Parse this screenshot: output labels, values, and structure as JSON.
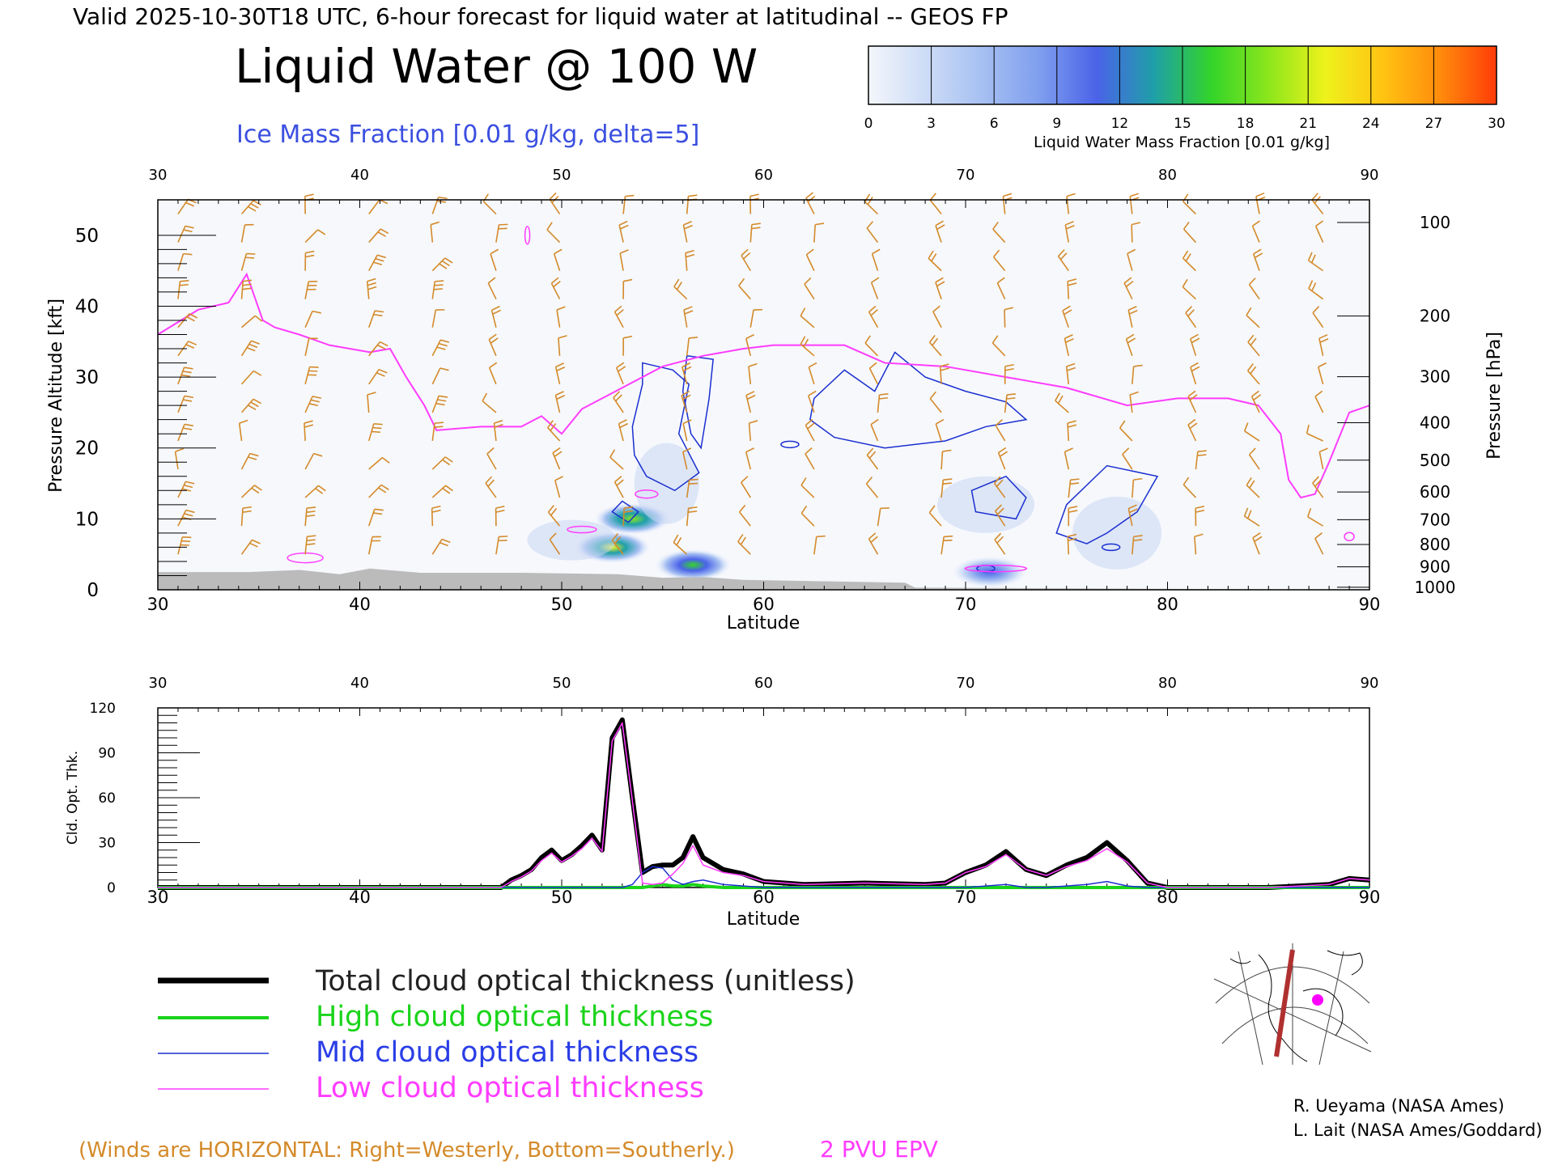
{
  "header": {
    "valid_line": "Valid 2025-10-30T18 UTC, 6-hour forecast for liquid water at latitudinal -- GEOS FP",
    "title": "Liquid Water @ 100 W",
    "subtitle": "Ice Mass Fraction [0.01 g/kg, delta=5]"
  },
  "colorbar": {
    "ticks": [
      "0",
      "3",
      "6",
      "9",
      "12",
      "15",
      "18",
      "21",
      "24",
      "27",
      "30"
    ],
    "label": "Liquid Water Mass Fraction [0.01 g/kg]",
    "colors": [
      "#f3f6fb",
      "#cddcf6",
      "#a6c0f2",
      "#7f9eee",
      "#4a63e8",
      "#1f9fa8",
      "#33d42a",
      "#8be61c",
      "#eef21c",
      "#ffc412",
      "#ff8c0c",
      "#ff3c08"
    ]
  },
  "colors": {
    "wind": "#d48a2a",
    "epv": "#ff3cff",
    "ice": "#1a2fd0",
    "terrain": "#bbbbbb",
    "total": "#000000",
    "high": "#1ad41a",
    "mid": "#1a2fd0",
    "low": "#ff3cff"
  },
  "chart_data": [
    {
      "type": "heatmap",
      "description_kind": "latitude-height cross section",
      "xlabel": "Latitude",
      "ylabel_left": "Pressure Altitude [kft]",
      "ylabel_right": "Pressure [hPa]",
      "xlim": [
        30,
        90
      ],
      "ylim_kft": [
        0,
        55
      ],
      "xticks": [
        "30",
        "40",
        "50",
        "60",
        "70",
        "80",
        "90"
      ],
      "yticks_left": [
        "0",
        "10",
        "20",
        "30",
        "40",
        "50"
      ],
      "yticks_right": [
        "100",
        "200",
        "300",
        "400",
        "500",
        "600",
        "700",
        "800",
        "900",
        "1000"
      ],
      "pressure_levels_hpa": [
        100,
        200,
        300,
        400,
        500,
        600,
        700,
        800,
        900,
        1000
      ],
      "epv_2pvu_kft": {
        "lat": [
          30,
          32,
          33.5,
          34.4,
          35.2,
          35.8,
          37,
          38.5,
          40.5,
          41.5,
          42.3,
          43.2,
          43.8,
          46,
          48,
          49,
          50,
          51,
          53,
          55,
          57,
          59,
          60.5,
          62,
          64,
          66,
          69,
          72,
          75,
          78,
          80.5,
          83,
          84.5,
          85.6,
          86,
          86.6,
          87.3,
          88,
          89,
          90
        ],
        "kft": [
          36,
          39.5,
          40.5,
          44.5,
          38,
          37,
          36,
          34.5,
          33.5,
          34,
          30,
          26,
          22.5,
          23,
          23,
          24.5,
          22,
          25.5,
          28.5,
          31.5,
          33,
          34,
          34.5,
          34.5,
          34.5,
          32,
          31.5,
          30,
          28.5,
          26,
          27,
          27,
          26,
          22,
          15.5,
          13,
          13.5,
          18,
          25,
          26
        ]
      },
      "liquid_water_blobs": [
        {
          "lat": 52.5,
          "kft": 6,
          "peak": 20
        },
        {
          "lat": 53.5,
          "kft": 10,
          "peak": 18
        },
        {
          "lat": 56.5,
          "kft": 3.5,
          "peak": 16
        },
        {
          "lat": 71.2,
          "kft": 2.5,
          "peak": 11
        }
      ]
    },
    {
      "type": "line",
      "xlabel": "Latitude",
      "ylabel": "Cld. Opt. Thk.",
      "xlim": [
        30,
        90
      ],
      "ylim": [
        0,
        120
      ],
      "xticks": [
        "30",
        "40",
        "50",
        "60",
        "70",
        "80",
        "90"
      ],
      "yticks": [
        "0",
        "30",
        "60",
        "90",
        "120"
      ],
      "x": [
        30,
        47,
        47.5,
        48,
        48.5,
        49,
        49.5,
        50,
        50.5,
        51,
        51.5,
        52,
        52.5,
        53,
        53.5,
        54,
        54.5,
        55,
        55.5,
        56,
        56.5,
        57,
        58,
        59,
        60,
        62,
        65,
        68,
        69,
        70,
        71,
        72,
        73,
        74,
        75,
        76,
        77,
        78,
        79,
        80,
        85,
        88,
        89,
        90
      ],
      "series": [
        {
          "name": "Total cloud optical thickness (unitless)",
          "values": [
            0,
            0,
            5,
            8,
            12,
            20,
            25,
            18,
            22,
            28,
            35,
            25,
            100,
            112,
            60,
            10,
            14,
            15,
            15,
            20,
            34,
            20,
            12,
            9,
            4,
            2,
            3,
            2,
            3,
            10,
            15,
            24,
            12,
            8,
            15,
            20,
            30,
            18,
            3,
            0,
            0,
            2,
            6,
            5
          ]
        },
        {
          "name": "High cloud optical thickness",
          "values": [
            0,
            0,
            0,
            0,
            0,
            0,
            0,
            0,
            0,
            0,
            0,
            0,
            0,
            0,
            0,
            0,
            1,
            2,
            1,
            1,
            2,
            1,
            0,
            0,
            0,
            0,
            0,
            0,
            0,
            0,
            0,
            0,
            0,
            0,
            0,
            0,
            0,
            0,
            0,
            0,
            0,
            0,
            0,
            0
          ]
        },
        {
          "name": "Mid cloud optical thickness",
          "values": [
            0,
            0,
            0,
            0,
            0,
            0,
            0,
            0,
            0,
            0,
            0,
            0,
            0,
            0,
            2,
            10,
            14,
            13,
            5,
            2,
            4,
            5,
            2,
            1,
            0,
            0,
            0,
            0,
            0,
            0,
            1,
            2,
            0,
            0,
            1,
            2,
            4,
            1,
            0,
            0,
            0,
            0,
            0,
            0
          ]
        },
        {
          "name": "Low cloud optical thickness",
          "values": [
            0,
            0,
            4,
            7,
            11,
            18,
            23,
            17,
            21,
            26,
            33,
            24,
            98,
            110,
            58,
            3,
            2,
            3,
            9,
            16,
            28,
            15,
            10,
            8,
            4,
            2,
            3,
            2,
            3,
            10,
            14,
            22,
            12,
            8,
            14,
            18,
            26,
            17,
            3,
            0,
            0,
            2,
            6,
            5
          ]
        }
      ]
    }
  ],
  "legend": {
    "total": "Total cloud optical thickness (unitless)",
    "high": "High cloud optical thickness",
    "mid": "Mid cloud optical thickness",
    "low": "Low cloud optical thickness"
  },
  "footer": {
    "winds_note": "(Winds are HORIZONTAL: Right=Westerly, Bottom=Southerly.)",
    "epv_label": "2 PVU EPV",
    "credit1": "R. Ueyama (NASA Ames)",
    "credit2": "L. Lait (NASA Ames/Goddard)"
  },
  "inset_map": {
    "meridian_color": "#b03030",
    "marker_color": "#ff00ff"
  }
}
